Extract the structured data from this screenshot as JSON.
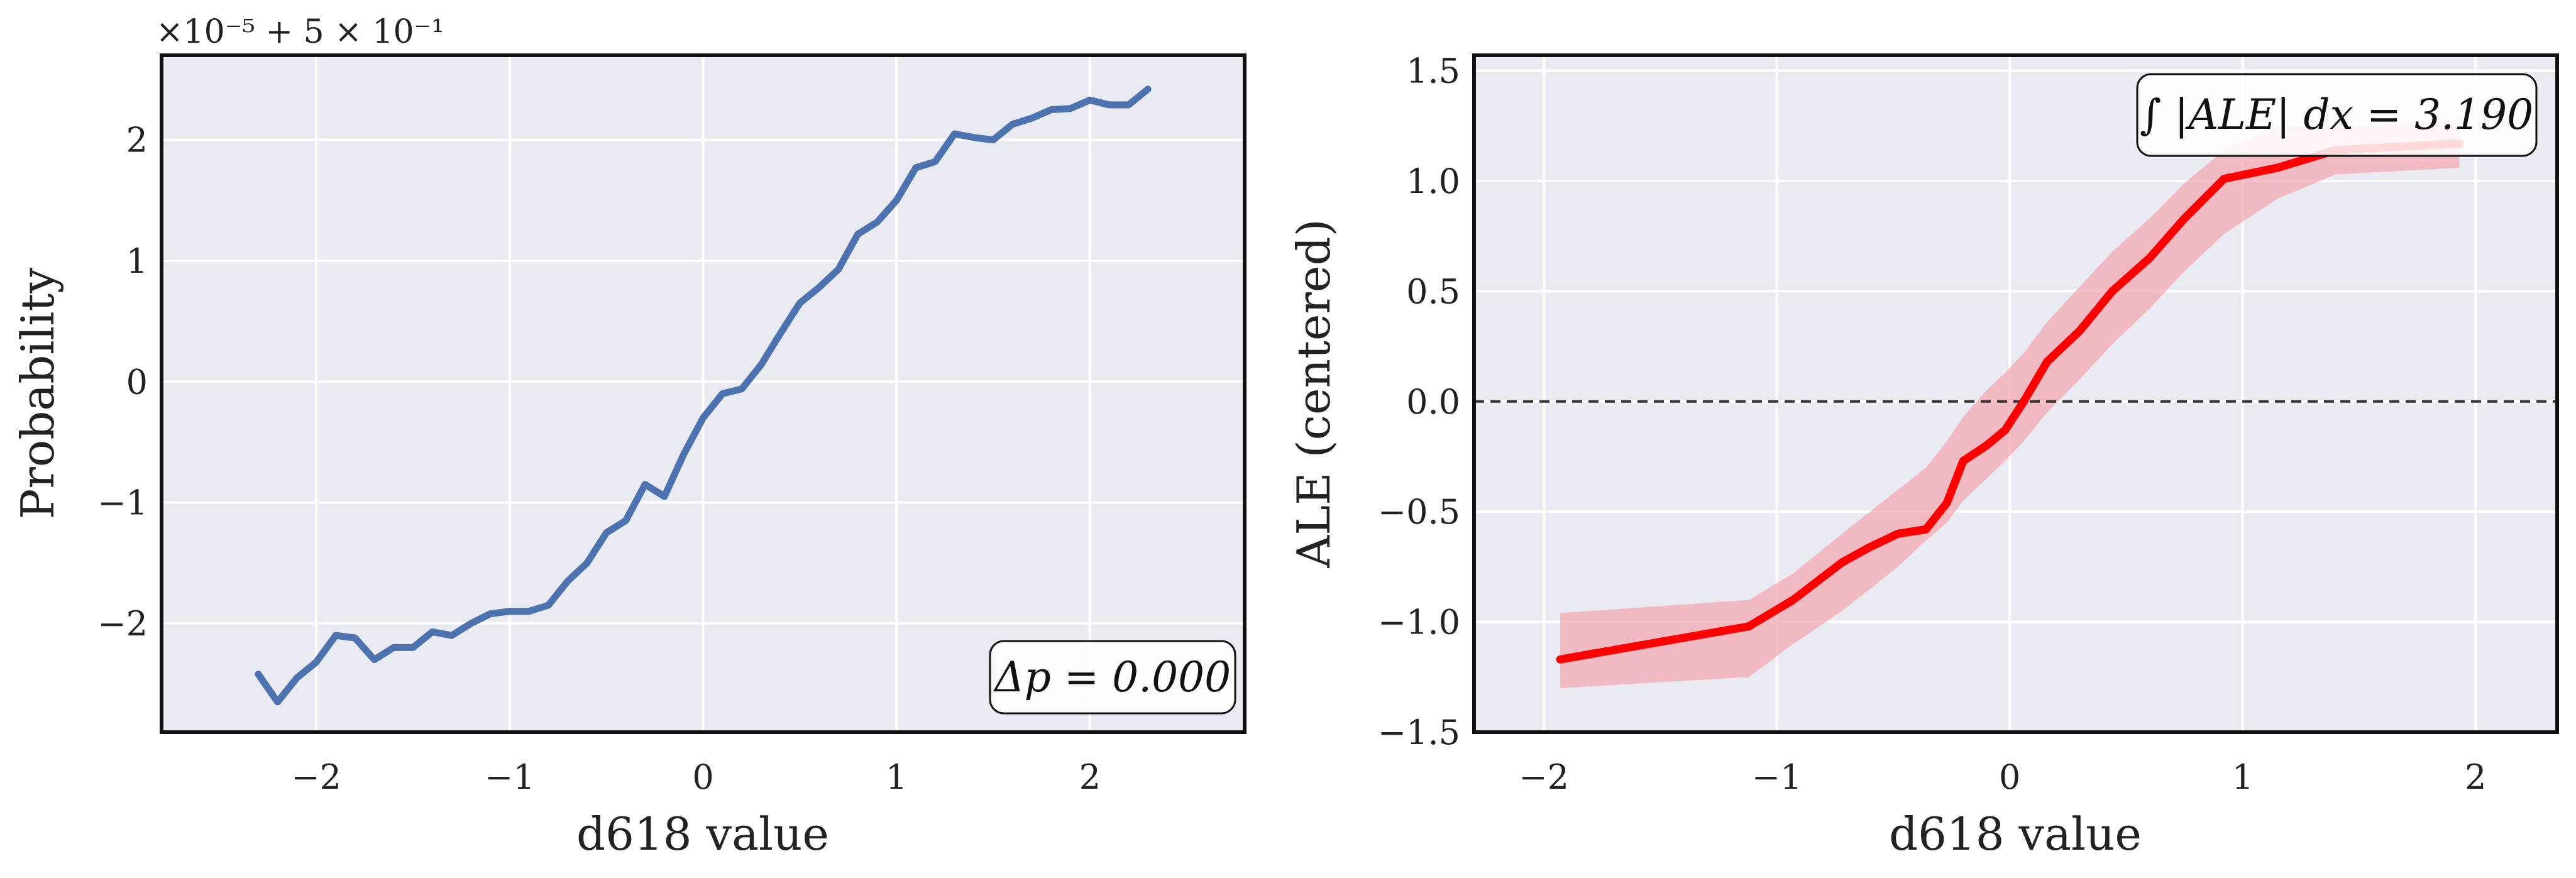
{
  "chart_data": [
    {
      "type": "line",
      "title": "",
      "xlabel": "d618 value",
      "ylabel": "Probability",
      "offset_text": "×10⁻⁵ + 5 × 10⁻¹",
      "xlim": [
        -2.8,
        2.8
      ],
      "ylim": [
        -2.9,
        2.7
      ],
      "xticks": [
        -2,
        -1,
        0,
        1,
        2
      ],
      "xtick_labels": [
        "−2",
        "−1",
        "0",
        "1",
        "2"
      ],
      "yticks": [
        -2,
        -1,
        0,
        1,
        2
      ],
      "ytick_labels": [
        "−2",
        "−1",
        "0",
        "1",
        "2"
      ],
      "grid": true,
      "color": "#4c72b0",
      "annotation": "Δp = 0.000",
      "annotation_position": "bottom-right",
      "series": [
        {
          "x": [
            -2.3,
            -2.2,
            -2.1,
            -2.0,
            -1.9,
            -1.8,
            -1.7,
            -1.6,
            -1.5,
            -1.4,
            -1.3,
            -1.2,
            -1.1,
            -1.0,
            -0.9,
            -0.8,
            -0.7,
            -0.6,
            -0.5,
            -0.4,
            -0.3,
            -0.2,
            -0.1,
            0.0,
            0.1,
            0.2,
            0.3,
            0.4,
            0.5,
            0.6,
            0.7,
            0.8,
            0.9,
            1.0,
            1.1,
            1.2,
            1.3,
            1.4,
            1.5,
            1.6,
            1.7,
            1.8,
            1.9,
            2.0,
            2.1,
            2.2,
            2.3
          ],
          "values": [
            -2.42,
            -2.65,
            -2.45,
            -2.32,
            -2.1,
            -2.12,
            -2.3,
            -2.2,
            -2.2,
            -2.07,
            -2.1,
            -2.0,
            -1.92,
            -1.9,
            -1.9,
            -1.85,
            -1.65,
            -1.5,
            -1.25,
            -1.15,
            -0.85,
            -0.95,
            -0.6,
            -0.3,
            -0.1,
            -0.06,
            0.14,
            0.4,
            0.65,
            0.78,
            0.93,
            1.22,
            1.32,
            1.5,
            1.77,
            1.82,
            2.05,
            2.02,
            2.0,
            2.13,
            2.18,
            2.25,
            2.26,
            2.33,
            2.29,
            2.29,
            2.42
          ]
        }
      ]
    },
    {
      "type": "line",
      "title": "",
      "xlabel": "d618 value",
      "ylabel": "ALE (centered)",
      "xlim": [
        -2.3,
        2.35
      ],
      "ylim": [
        -1.5,
        1.57
      ],
      "xticks": [
        -2,
        -1,
        0,
        1,
        2
      ],
      "xtick_labels": [
        "−2",
        "−1",
        "0",
        "1",
        "2"
      ],
      "yticks": [
        -1.5,
        -1.0,
        -0.5,
        0.0,
        0.5,
        1.0,
        1.5
      ],
      "ytick_labels": [
        "−1.5",
        "−1.0",
        "−0.5",
        "0.0",
        "0.5",
        "1.0",
        "1.5"
      ],
      "grid": true,
      "color": "#ff0000",
      "band_color": "#f4a6ae",
      "reference_line": 0.0,
      "annotation": "∫ |ALE| dx = 3.190",
      "annotation_position": "top-right",
      "series": [
        {
          "x": [
            -1.93,
            -1.12,
            -0.93,
            -0.72,
            -0.6,
            -0.48,
            -0.36,
            -0.27,
            -0.2,
            -0.1,
            -0.02,
            0.06,
            0.16,
            0.3,
            0.44,
            0.6,
            0.75,
            0.92,
            1.15,
            1.4,
            1.93
          ],
          "values": [
            -1.17,
            -1.02,
            -0.9,
            -0.73,
            -0.66,
            -0.6,
            -0.58,
            -0.46,
            -0.27,
            -0.2,
            -0.13,
            0.0,
            0.18,
            0.32,
            0.5,
            0.65,
            0.83,
            1.01,
            1.06,
            1.14,
            1.17
          ],
          "lower": [
            -1.3,
            -1.25,
            -1.1,
            -0.95,
            -0.85,
            -0.75,
            -0.63,
            -0.55,
            -0.45,
            -0.35,
            -0.27,
            -0.18,
            -0.05,
            0.1,
            0.26,
            0.42,
            0.59,
            0.76,
            0.92,
            1.03,
            1.06
          ],
          "upper": [
            -0.96,
            -0.9,
            -0.78,
            -0.6,
            -0.5,
            -0.4,
            -0.3,
            -0.18,
            -0.07,
            0.05,
            0.13,
            0.22,
            0.36,
            0.52,
            0.68,
            0.83,
            0.99,
            1.14,
            1.25,
            1.24,
            1.28
          ]
        }
      ]
    }
  ]
}
